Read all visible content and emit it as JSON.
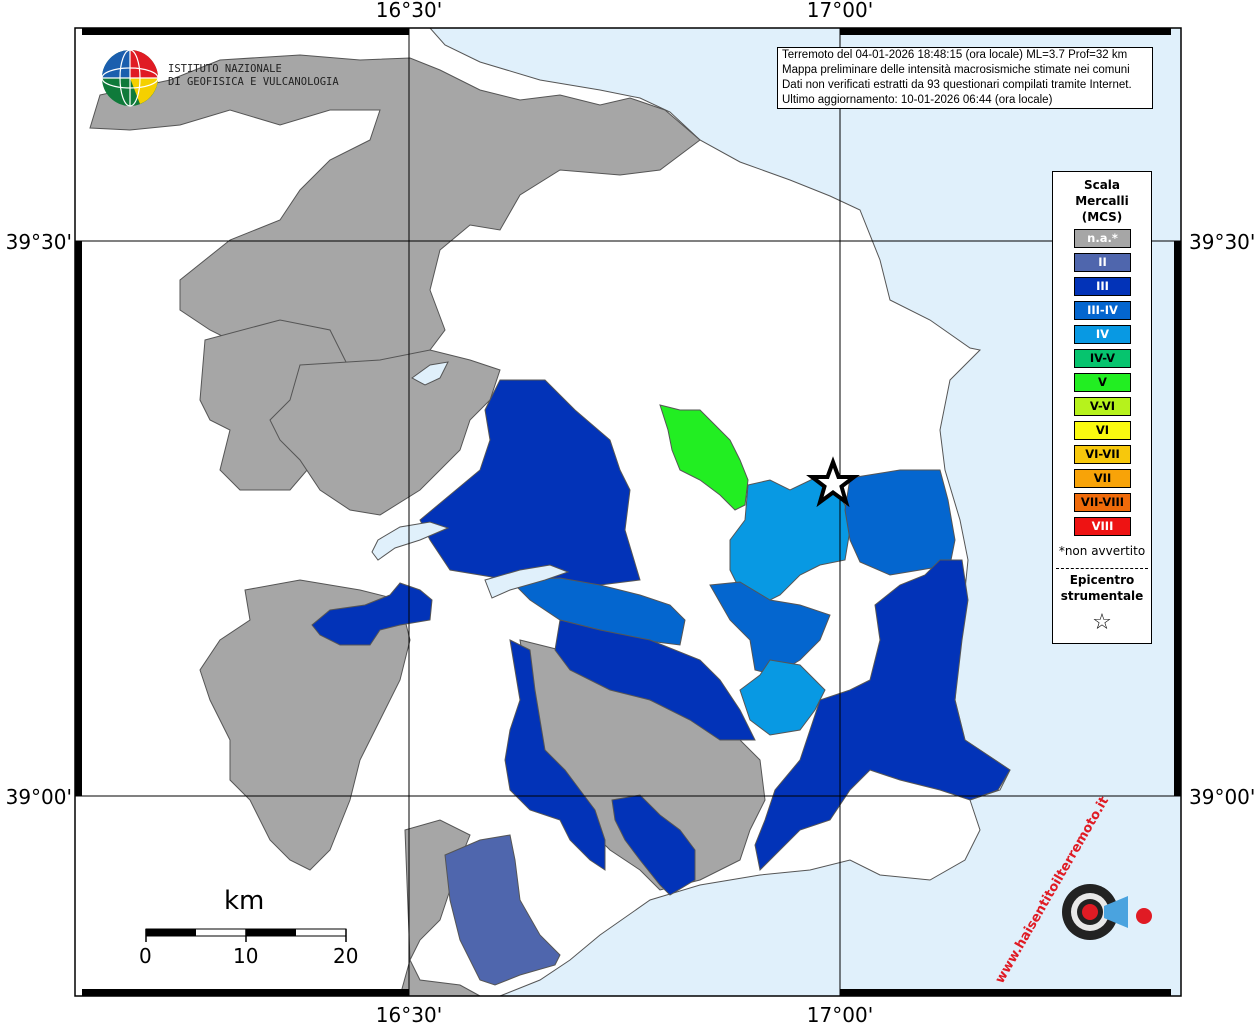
{
  "map": {
    "frame_ticks": {
      "top": [
        "16°30'",
        "17°00'"
      ],
      "bottom": [
        "16°30'",
        "17°00'"
      ],
      "left": [
        "39°30'",
        "39°00'"
      ],
      "right": [
        "39°30'",
        "39°00'"
      ]
    },
    "info": {
      "line1": "Terremoto del 04-01-2026 18:48:15 (ora locale) ML=3.7 Prof=32 km",
      "line2": "Mappa preliminare delle intensità macrosismiche stimate nei comuni",
      "line3": "Dati non verificati estratti da 93 questionari compilati tramite Internet.",
      "line4": "Ultimo aggiornamento: 10-01-2026 06:44 (ora locale)"
    },
    "institute": {
      "line1": "ISTITUTO NAZIONALE",
      "line2": "DI GEOFISICA E VULCANOLOGIA"
    },
    "legend": {
      "title1": "Scala",
      "title2": "Mercalli",
      "title3": "(MCS)",
      "items": [
        {
          "label": "n.a.*",
          "color": "#a6a6a6"
        },
        {
          "label": "II",
          "color": "#4f66ad"
        },
        {
          "label": "III",
          "color": "#0233b8"
        },
        {
          "label": "III-IV",
          "color": "#0466cf"
        },
        {
          "label": "IV",
          "color": "#0899e3"
        },
        {
          "label": "IV-V",
          "color": "#06c46e"
        },
        {
          "label": "V",
          "color": "#22ee22"
        },
        {
          "label": "V-VI",
          "color": "#b6f21c"
        },
        {
          "label": "VI",
          "color": "#fafa10"
        },
        {
          "label": "VI-VII",
          "color": "#f7c80c"
        },
        {
          "label": "VII",
          "color": "#f8a308"
        },
        {
          "label": "VII-VIII",
          "color": "#ef6a0a"
        },
        {
          "label": "VIII",
          "color": "#ee1313"
        }
      ],
      "note": "*non avvertito",
      "epicenter1": "Epicentro",
      "epicenter2": "strumentale",
      "star": "☆"
    },
    "scale_bar": {
      "unit": "km",
      "labels": [
        "0",
        "10",
        "20"
      ]
    },
    "logo": {
      "text": "www.haisentitoilterremoto.it"
    },
    "colors": {
      "sea": "#e0f0fb",
      "land": "#ffffff",
      "na": "#a6a6a6",
      "II": "#4f66ad",
      "III": "#0233b8",
      "III-IV": "#0466cf",
      "IV": "#0899e3",
      "V": "#22ee22"
    }
  }
}
